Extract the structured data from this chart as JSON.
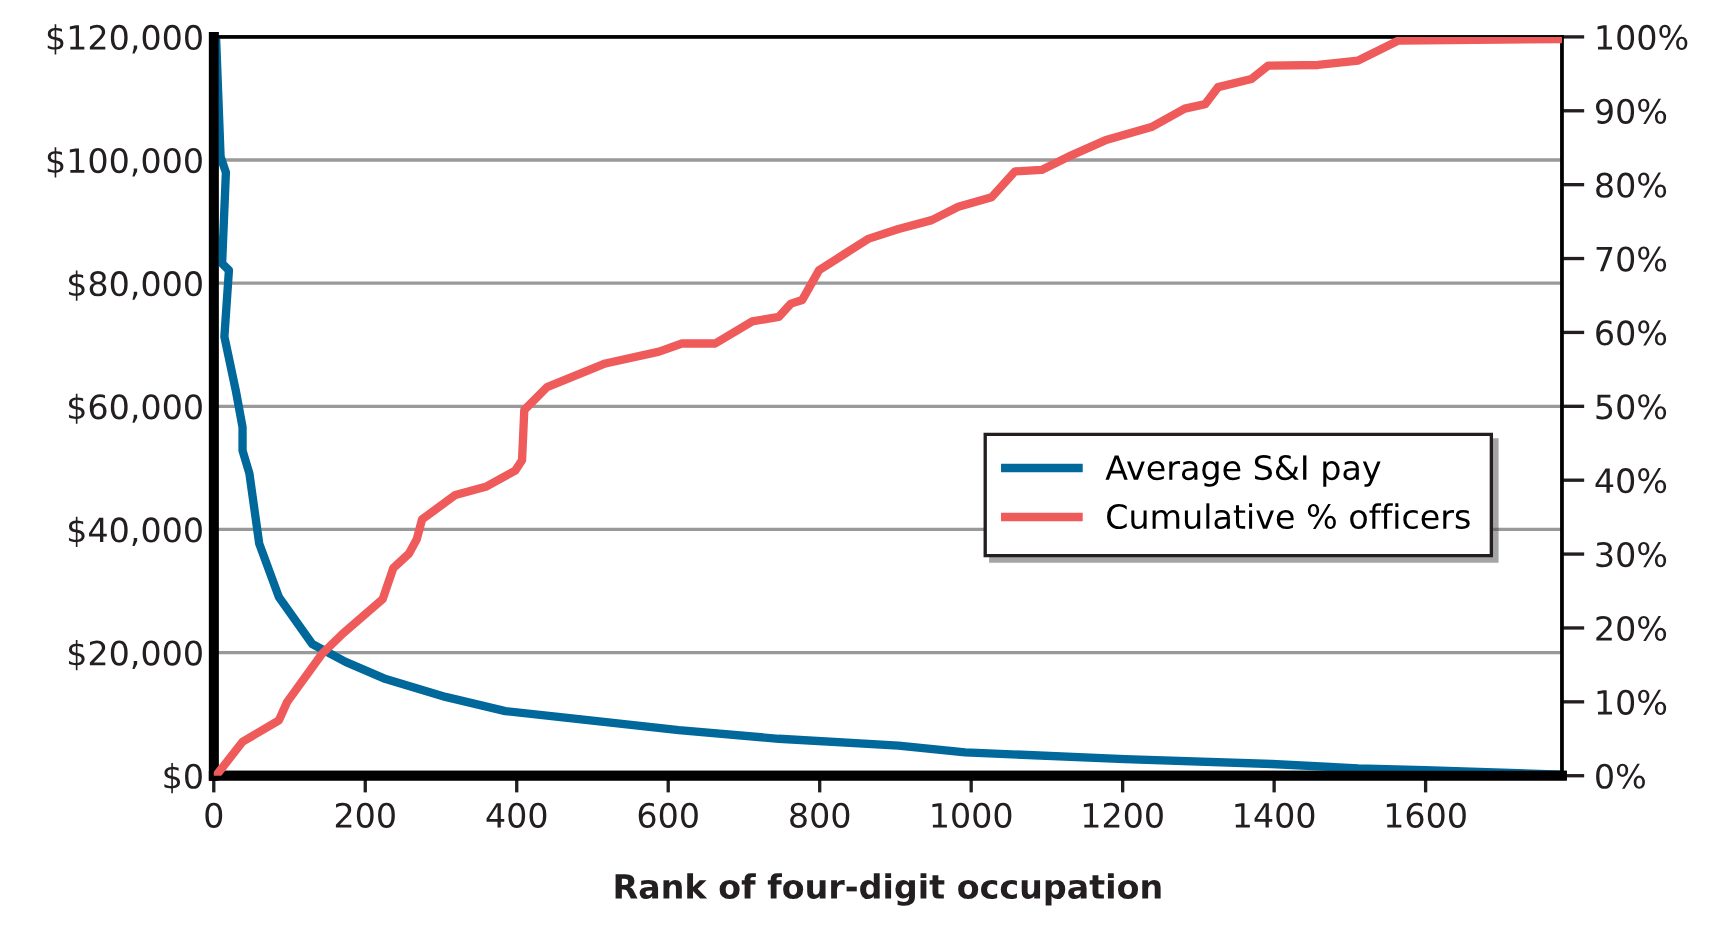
{
  "chart_data": {
    "type": "line",
    "xlabel": "Rank of four-digit occupation",
    "xlim": [
      0,
      1780
    ],
    "xticks": [
      0,
      200,
      400,
      600,
      800,
      1000,
      1200,
      1400,
      1600
    ],
    "ylim": [
      0,
      120000
    ],
    "yticks": [
      {
        "value": 0,
        "label": "$0"
      },
      {
        "value": 20000,
        "label": "$20,000"
      },
      {
        "value": 40000,
        "label": "$40,000"
      },
      {
        "value": 60000,
        "label": "$60,000"
      },
      {
        "value": 80000,
        "label": "$80,000"
      },
      {
        "value": 100000,
        "label": "$100,000"
      },
      {
        "value": 120000,
        "label": "$120,000"
      }
    ],
    "y2lim": [
      0,
      100
    ],
    "y2ticks": [
      {
        "value": 0,
        "label": "0%"
      },
      {
        "value": 10,
        "label": "10%"
      },
      {
        "value": 20,
        "label": "20%"
      },
      {
        "value": 30,
        "label": "30%"
      },
      {
        "value": 40,
        "label": "40%"
      },
      {
        "value": 50,
        "label": "50%"
      },
      {
        "value": 60,
        "label": "60%"
      },
      {
        "value": 70,
        "label": "70%"
      },
      {
        "value": 80,
        "label": "80%"
      },
      {
        "value": 90,
        "label": "90%"
      },
      {
        "value": 100,
        "label": "100%"
      }
    ],
    "grid": "y",
    "legend": "right",
    "marker": "none",
    "line_style": "solid",
    "series": [
      {
        "name": "Average S&I pay",
        "color": "#00689a",
        "axis": "y",
        "x": [
          3,
          9,
          16,
          11,
          20,
          14,
          29,
          38,
          38,
          47,
          60,
          86,
          130,
          174,
          227,
          306,
          385,
          482,
          614,
          746,
          904,
          992,
          1203,
          1397,
          1511,
          1599,
          1777
        ],
        "values": [
          120000,
          100500,
          98000,
          83200,
          82100,
          71300,
          62600,
          56600,
          52800,
          49100,
          37700,
          29000,
          21400,
          18500,
          15700,
          12800,
          10500,
          9200,
          7400,
          6000,
          4900,
          3800,
          2700,
          1900,
          1200,
          900,
          200
        ]
      },
      {
        "name": "Cumulative % officers",
        "color": "#ef5b5b",
        "axis": "y2",
        "x": [
          3,
          38,
          86,
          97,
          143,
          170,
          223,
          237,
          258,
          268,
          275,
          319,
          359,
          398,
          407,
          410,
          440,
          517,
          588,
          618,
          662,
          711,
          746,
          762,
          777,
          799,
          834,
          865,
          904,
          948,
          983,
          1027,
          1058,
          1093,
          1133,
          1177,
          1238,
          1282,
          1309,
          1326,
          1370,
          1392,
          1458,
          1511,
          1564,
          1777
        ],
        "values": [
          0,
          4.6,
          7.5,
          10.0,
          16.5,
          19.2,
          23.9,
          28.1,
          30.1,
          32.0,
          34.7,
          38.0,
          39.1,
          41.3,
          42.7,
          49.5,
          52.6,
          55.8,
          57.4,
          58.5,
          58.5,
          61.5,
          62.1,
          63.9,
          64.4,
          68.4,
          70.7,
          72.7,
          74.0,
          75.2,
          77.0,
          78.3,
          81.8,
          82.0,
          84.0,
          86.0,
          87.8,
          90.3,
          90.9,
          93.2,
          94.3,
          96.1,
          96.2,
          96.8,
          99.5,
          99.7
        ]
      }
    ]
  }
}
